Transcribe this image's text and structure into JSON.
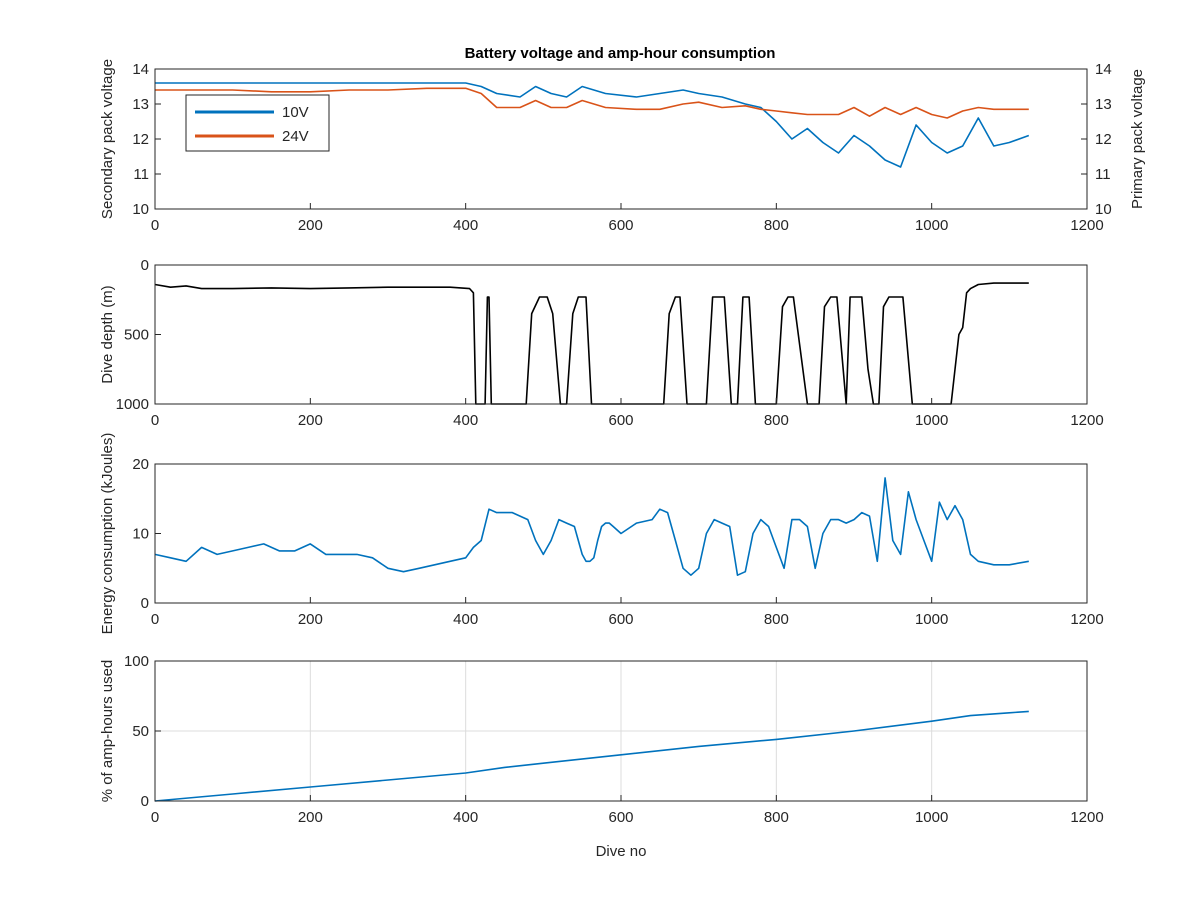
{
  "figure": {
    "title": "Battery voltage and amp-hour consumption"
  },
  "colors": {
    "blue": "#0072bd",
    "orange": "#d95319",
    "black": "#000000",
    "axis": "#262626",
    "grid": "#dcdcdc"
  },
  "chart_data": [
    {
      "type": "line",
      "title": "Battery voltage and amp-hour consumption",
      "xlabel": "",
      "ylabel": "Secondary pack voltage",
      "ylabel_right": "Primary pack voltage",
      "xlim": [
        0,
        1200
      ],
      "ylim": [
        10,
        14
      ],
      "ylim_right": [
        10,
        14
      ],
      "xticks": [
        0,
        200,
        400,
        600,
        800,
        1000,
        1200
      ],
      "yticks": [
        10,
        11,
        12,
        13,
        14
      ],
      "yticks_right": [
        10,
        11,
        12,
        13,
        14
      ],
      "grid": false,
      "legend": {
        "placement": "top-left",
        "entries": [
          "10V",
          "24V"
        ]
      },
      "series": [
        {
          "name": "10V",
          "axis": "left",
          "color": "#0072bd",
          "x": [
            0,
            50,
            100,
            150,
            200,
            250,
            300,
            350,
            400,
            420,
            440,
            470,
            490,
            510,
            530,
            550,
            580,
            620,
            650,
            680,
            700,
            730,
            760,
            780,
            800,
            820,
            840,
            860,
            880,
            900,
            920,
            940,
            960,
            980,
            1000,
            1020,
            1040,
            1060,
            1080,
            1100,
            1125
          ],
          "y": [
            13.6,
            13.6,
            13.6,
            13.6,
            13.6,
            13.6,
            13.6,
            13.6,
            13.6,
            13.5,
            13.3,
            13.2,
            13.5,
            13.3,
            13.2,
            13.5,
            13.3,
            13.2,
            13.3,
            13.4,
            13.3,
            13.2,
            13.0,
            12.9,
            12.5,
            12.0,
            12.3,
            11.9,
            11.6,
            12.1,
            11.8,
            11.4,
            11.2,
            12.4,
            11.9,
            11.6,
            11.8,
            12.6,
            11.8,
            11.9,
            12.1
          ]
        },
        {
          "name": "24V",
          "axis": "right",
          "color": "#d95319",
          "x": [
            0,
            50,
            100,
            150,
            200,
            250,
            300,
            350,
            400,
            420,
            440,
            470,
            490,
            510,
            530,
            550,
            580,
            620,
            650,
            680,
            700,
            730,
            760,
            780,
            800,
            820,
            840,
            860,
            880,
            900,
            920,
            940,
            960,
            980,
            1000,
            1020,
            1040,
            1060,
            1080,
            1100,
            1125
          ],
          "y": [
            13.4,
            13.4,
            13.4,
            13.35,
            13.35,
            13.4,
            13.4,
            13.45,
            13.45,
            13.3,
            12.9,
            12.9,
            13.1,
            12.9,
            12.9,
            13.1,
            12.9,
            12.85,
            12.85,
            13.0,
            13.05,
            12.9,
            12.95,
            12.85,
            12.8,
            12.75,
            12.7,
            12.7,
            12.7,
            12.9,
            12.65,
            12.9,
            12.7,
            12.9,
            12.7,
            12.6,
            12.8,
            12.9,
            12.85,
            12.85,
            12.85
          ]
        }
      ]
    },
    {
      "type": "line",
      "xlabel": "",
      "ylabel": "Dive depth (m)",
      "xlim": [
        0,
        1200
      ],
      "ylim": [
        0,
        1000
      ],
      "y_reversed": true,
      "xticks": [
        0,
        200,
        400,
        600,
        800,
        1000,
        1200
      ],
      "yticks": [
        0,
        500,
        1000
      ],
      "grid": false,
      "series": [
        {
          "color": "#000000",
          "x": [
            0,
            20,
            40,
            60,
            100,
            150,
            200,
            250,
            300,
            350,
            380,
            405,
            410,
            413,
            417,
            425,
            428,
            430,
            433,
            440,
            470,
            478,
            485,
            495,
            505,
            512,
            522,
            530,
            538,
            545,
            555,
            562,
            600,
            640,
            655,
            662,
            670,
            676,
            685,
            700,
            710,
            718,
            725,
            733,
            742,
            750,
            757,
            765,
            773,
            790,
            800,
            808,
            815,
            822,
            840,
            855,
            862,
            870,
            878,
            890,
            895,
            900,
            910,
            918,
            925,
            932,
            938,
            945,
            955,
            963,
            975,
            990,
            1010,
            1025,
            1030,
            1035,
            1040,
            1045,
            1050,
            1060,
            1080,
            1100,
            1125
          ],
          "y": [
            140,
            160,
            150,
            170,
            170,
            165,
            170,
            165,
            160,
            160,
            160,
            170,
            200,
            1000,
            1000,
            1000,
            230,
            230,
            1000,
            1000,
            1000,
            1000,
            350,
            230,
            230,
            350,
            1000,
            1000,
            350,
            230,
            230,
            1000,
            1000,
            1000,
            1000,
            350,
            230,
            230,
            1000,
            1000,
            1000,
            230,
            230,
            230,
            1000,
            1000,
            230,
            230,
            1000,
            1000,
            1000,
            300,
            230,
            230,
            1000,
            1000,
            300,
            230,
            230,
            1000,
            230,
            230,
            230,
            750,
            1000,
            1000,
            300,
            230,
            230,
            230,
            1000,
            1000,
            1000,
            1000,
            750,
            500,
            450,
            200,
            170,
            140,
            130,
            130,
            130
          ]
        }
      ]
    },
    {
      "type": "line",
      "xlabel": "",
      "ylabel": "Energy consumption (kJoules)",
      "xlim": [
        0,
        1200
      ],
      "ylim": [
        0,
        20
      ],
      "xticks": [
        0,
        200,
        400,
        600,
        800,
        1000,
        1200
      ],
      "yticks": [
        0,
        10,
        20
      ],
      "grid": false,
      "series": [
        {
          "color": "#0072bd",
          "x": [
            0,
            20,
            40,
            60,
            80,
            100,
            120,
            140,
            160,
            180,
            200,
            220,
            240,
            260,
            280,
            300,
            320,
            340,
            360,
            380,
            400,
            410,
            420,
            430,
            440,
            460,
            480,
            490,
            500,
            510,
            520,
            530,
            540,
            550,
            555,
            560,
            565,
            570,
            575,
            580,
            585,
            590,
            600,
            620,
            640,
            650,
            660,
            670,
            680,
            690,
            700,
            710,
            720,
            730,
            740,
            750,
            760,
            770,
            780,
            790,
            800,
            810,
            820,
            830,
            840,
            850,
            860,
            870,
            880,
            890,
            900,
            910,
            920,
            930,
            940,
            950,
            960,
            970,
            980,
            990,
            1000,
            1010,
            1020,
            1030,
            1040,
            1050,
            1060,
            1080,
            1100,
            1125
          ],
          "y": [
            7,
            6.5,
            6,
            8,
            7,
            7.5,
            8,
            8.5,
            7.5,
            7.5,
            8.5,
            7,
            7,
            7,
            6.5,
            5,
            4.5,
            5,
            5.5,
            6,
            6.5,
            8,
            9,
            13.5,
            13,
            13,
            12,
            9,
            7,
            9,
            12,
            11.5,
            11,
            7,
            6,
            6,
            6.5,
            9,
            11,
            11.5,
            11.5,
            11,
            10,
            11.5,
            12,
            13.5,
            13,
            9,
            5,
            4,
            5,
            10,
            12,
            11.5,
            11,
            4,
            4.5,
            10,
            12,
            11,
            8,
            5,
            12,
            12,
            11,
            5,
            10,
            12,
            12,
            11.5,
            12,
            13,
            12.5,
            6,
            18,
            9,
            7,
            16,
            12,
            9,
            6,
            14.5,
            12,
            14,
            12,
            7,
            6,
            5.5,
            5.5,
            6
          ]
        }
      ]
    },
    {
      "type": "line",
      "xlabel": "Dive no",
      "ylabel": "% of amp-hours used",
      "xlim": [
        0,
        1200
      ],
      "ylim": [
        0,
        100
      ],
      "xticks": [
        0,
        200,
        400,
        600,
        800,
        1000,
        1200
      ],
      "yticks": [
        0,
        50,
        100
      ],
      "grid": true,
      "series": [
        {
          "color": "#0072bd",
          "x": [
            0,
            100,
            200,
            300,
            400,
            450,
            500,
            600,
            700,
            800,
            900,
            1000,
            1050,
            1100,
            1125
          ],
          "y": [
            0,
            5,
            10,
            15,
            20,
            24,
            27,
            33,
            39,
            44,
            50,
            57,
            61,
            63,
            64
          ]
        }
      ]
    }
  ]
}
